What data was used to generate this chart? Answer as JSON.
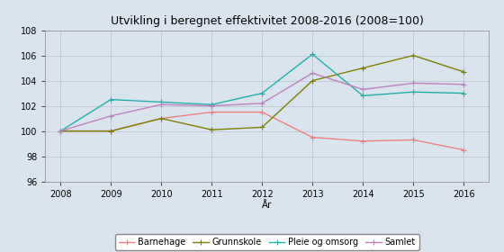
{
  "title": "Utvikling i beregnet effektivitet 2008-2016 (2008=100)",
  "xlabel": "År",
  "ylabel": "",
  "years": [
    2008,
    2009,
    2010,
    2011,
    2012,
    2013,
    2014,
    2015,
    2016
  ],
  "barnehage": [
    100.0,
    100.0,
    101.0,
    101.5,
    101.5,
    99.5,
    99.2,
    99.3,
    98.5
  ],
  "grunnskole": [
    100.0,
    100.0,
    101.0,
    100.1,
    100.3,
    104.0,
    105.0,
    106.0,
    104.7
  ],
  "pleie_omsorg": [
    100.0,
    102.5,
    102.3,
    102.1,
    103.0,
    106.1,
    102.8,
    103.1,
    103.0
  ],
  "samlet": [
    100.0,
    101.2,
    102.1,
    102.0,
    102.2,
    104.6,
    103.3,
    103.8,
    103.7
  ],
  "color_barnehage": "#f08080",
  "color_grunnskole": "#808000",
  "color_pleie": "#20b2aa",
  "color_samlet": "#c080c0",
  "ylim_min": 96,
  "ylim_max": 108,
  "yticks": [
    96,
    98,
    100,
    102,
    104,
    106,
    108
  ],
  "bg_color": "#d9e4ef",
  "legend_labels": [
    "Barnehage",
    "Grunnskole",
    "Pleie og omsorg",
    "Samlet"
  ],
  "marker": "+"
}
